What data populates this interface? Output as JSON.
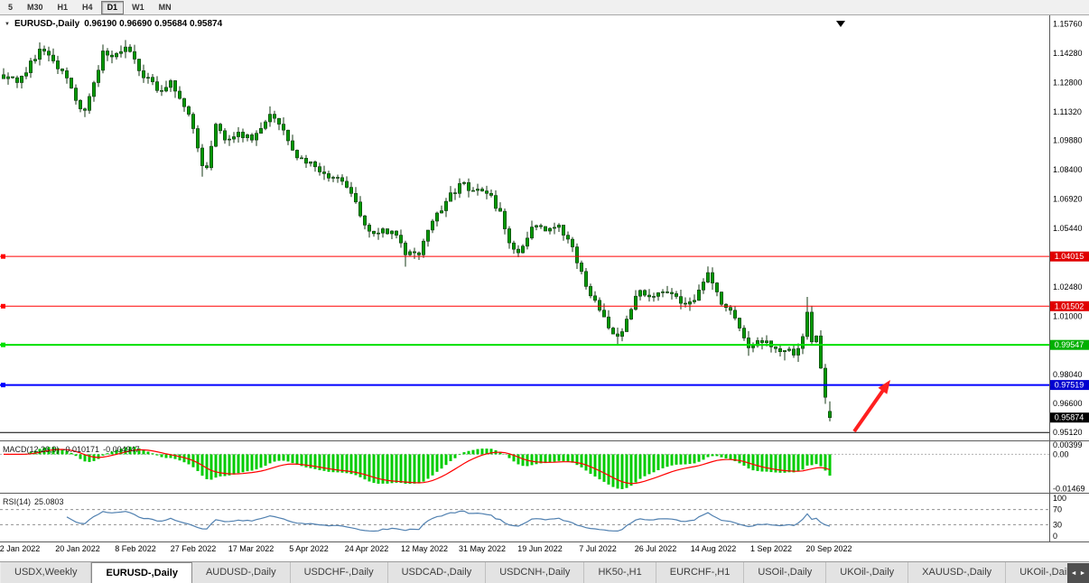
{
  "toolbar": {
    "timeframes": [
      {
        "label": "5",
        "active": false
      },
      {
        "label": "M30",
        "active": false
      },
      {
        "label": "H1",
        "active": false
      },
      {
        "label": "H4",
        "active": false
      },
      {
        "label": "D1",
        "active": true
      },
      {
        "label": "W1",
        "active": false
      },
      {
        "label": "MN",
        "active": false
      }
    ]
  },
  "icons": {
    "dropdown": "▼"
  },
  "chart": {
    "title": "EURUSD-,Daily",
    "ohlc_text": "0.96190 0.96690 0.95684 0.95874",
    "axis_ticks": [
      "1.15760",
      "1.14280",
      "1.12800",
      "1.11320",
      "1.09880",
      "1.08400",
      "1.06920",
      "1.05440",
      "1.03960",
      "1.02480",
      "1.01000",
      "0.99520",
      "0.98040",
      "0.96600",
      "0.95120"
    ],
    "hlines": [
      {
        "price": 1.04015,
        "color": "#FF0000",
        "width": 1,
        "handle": true,
        "badge": "1.04015",
        "badge_bg": "#E00000"
      },
      {
        "price": 1.01502,
        "color": "#FF0000",
        "width": 1,
        "handle": true,
        "badge": "1.01502",
        "badge_bg": "#E00000"
      },
      {
        "price": 0.99547,
        "color": "#00E000",
        "width": 2,
        "handle": true,
        "badge": "0.99547",
        "badge_bg": "#00B000"
      },
      {
        "price": 0.97519,
        "color": "#0000FF",
        "width": 2,
        "handle": true,
        "badge": "0.97519",
        "badge_bg": "#0000D0"
      },
      {
        "price": 0.9512,
        "color": "#000000",
        "width": 1,
        "handle": false,
        "badge": null,
        "badge_bg": null
      }
    ],
    "current_price_badge": {
      "text": "0.95874",
      "bg": "#000000"
    },
    "colors": {
      "candle_fill": "#009900",
      "candle_border": "#143814",
      "wick": "#143814"
    },
    "arrow": {
      "color": "#FF1F1F",
      "from": [
        946,
        461
      ],
      "to": [
        986,
        404
      ]
    },
    "dates": [
      "2 Jan 2022",
      "20 Jan 2022",
      "8 Feb 2022",
      "27 Feb 2022",
      "17 Mar 2022",
      "5 Apr 2022",
      "24 Apr 2022",
      "12 May 2022",
      "31 May 2022",
      "19 Jun 2022",
      "7 Jul 2022",
      "26 Jul 2022",
      "14 Aug 2022",
      "1 Sep 2022",
      "20 Sep 2022"
    ]
  },
  "macd": {
    "name": "MACD(12,26,9)",
    "value1": "-0.010171",
    "value2": "-0.004947",
    "axis": [
      "0.00399",
      "0.00",
      "-0.01469"
    ],
    "hist_color": "#00CC00",
    "signal_color": "#FF0000"
  },
  "rsi": {
    "name": "RSI(14)",
    "value": "25.0803",
    "axis": [
      "100",
      "70",
      "30",
      "0"
    ],
    "levels": [
      70,
      30
    ],
    "line_color": "#5080B0"
  },
  "tabs": {
    "items": [
      "USDX,Weekly",
      "EURUSD-,Daily",
      "AUDUSD-,Daily",
      "USDCHF-,Daily",
      "USDCAD-,Daily",
      "USDCNH-,Daily",
      "HK50-,H1",
      "EURCHF-,H1",
      "USOil-,Daily",
      "UKOil-,Daily",
      "XAUUSD-,Daily",
      "UKOil-,Daily"
    ],
    "active_index": 1,
    "scroll_left": "◄",
    "scroll_right": "►"
  },
  "chart_data": {
    "type": "candlestick",
    "symbol": "EURUSD-",
    "timeframe": "Daily",
    "n_candles": 184,
    "y_range": [
      0.9472,
      1.162
    ],
    "close_waypoints": [
      [
        0,
        1.13
      ],
      [
        3,
        1.128
      ],
      [
        5,
        1.133
      ],
      [
        8,
        1.145
      ],
      [
        11,
        1.139
      ],
      [
        13,
        1.134
      ],
      [
        16,
        1.119
      ],
      [
        18,
        1.114
      ],
      [
        20,
        1.128
      ],
      [
        22,
        1.144
      ],
      [
        24,
        1.141
      ],
      [
        27,
        1.146
      ],
      [
        30,
        1.134
      ],
      [
        34,
        1.124
      ],
      [
        37,
        1.129
      ],
      [
        39,
        1.12
      ],
      [
        41,
        1.112
      ],
      [
        44,
        1.086
      ],
      [
        45,
        1.085
      ],
      [
        47,
        1.107
      ],
      [
        49,
        1.099
      ],
      [
        52,
        1.103
      ],
      [
        55,
        1.099
      ],
      [
        59,
        1.112
      ],
      [
        62,
        1.104
      ],
      [
        65,
        1.09
      ],
      [
        68,
        1.088
      ],
      [
        71,
        1.082
      ],
      [
        74,
        1.08
      ],
      [
        77,
        1.072
      ],
      [
        80,
        1.056
      ],
      [
        83,
        1.052
      ],
      [
        86,
        1.053
      ],
      [
        89,
        1.041
      ],
      [
        92,
        1.041
      ],
      [
        95,
        1.058
      ],
      [
        98,
        1.068
      ],
      [
        101,
        1.077
      ],
      [
        104,
        1.0735
      ],
      [
        107,
        1.072
      ],
      [
        110,
        1.063
      ],
      [
        112,
        1.047
      ],
      [
        114,
        1.042
      ],
      [
        117,
        1.055
      ],
      [
        120,
        1.053
      ],
      [
        123,
        1.056
      ],
      [
        126,
        1.045
      ],
      [
        129,
        1.025
      ],
      [
        131,
        1.018
      ],
      [
        134,
        1.004
      ],
      [
        136,
        0.9998
      ],
      [
        138,
        1.0085
      ],
      [
        141,
        1.023
      ],
      [
        144,
        1.02
      ],
      [
        147,
        1.022
      ],
      [
        150,
        1.0165
      ],
      [
        153,
        1.018
      ],
      [
        156,
        1.032
      ],
      [
        159,
        1.016
      ],
      [
        162,
        1.009
      ],
      [
        165,
        0.994
      ],
      [
        168,
        0.9966
      ],
      [
        170,
        0.9945
      ],
      [
        173,
        0.9926
      ],
      [
        175,
        0.9903
      ],
      [
        177,
        0.9997
      ],
      [
        178,
        1.012
      ],
      [
        179,
        0.997
      ],
      [
        180,
        1.0
      ],
      [
        181,
        0.9837
      ],
      [
        182,
        0.969
      ],
      [
        183,
        0.95874
      ]
    ],
    "high_overrides": {
      "8": 1.1483,
      "27": 1.1495,
      "59": 1.116,
      "178": 1.0197
    },
    "low_overrides": {
      "18": 1.1106,
      "44": 1.0805,
      "89": 1.035,
      "136": 0.9952,
      "165": 0.99,
      "173": 0.9876
    },
    "last_candle": {
      "open": 0.9619,
      "high": 0.9669,
      "low": 0.95684,
      "close": 0.95874
    },
    "indicators": [
      "MACD(12,26,9)",
      "RSI(14)"
    ]
  }
}
